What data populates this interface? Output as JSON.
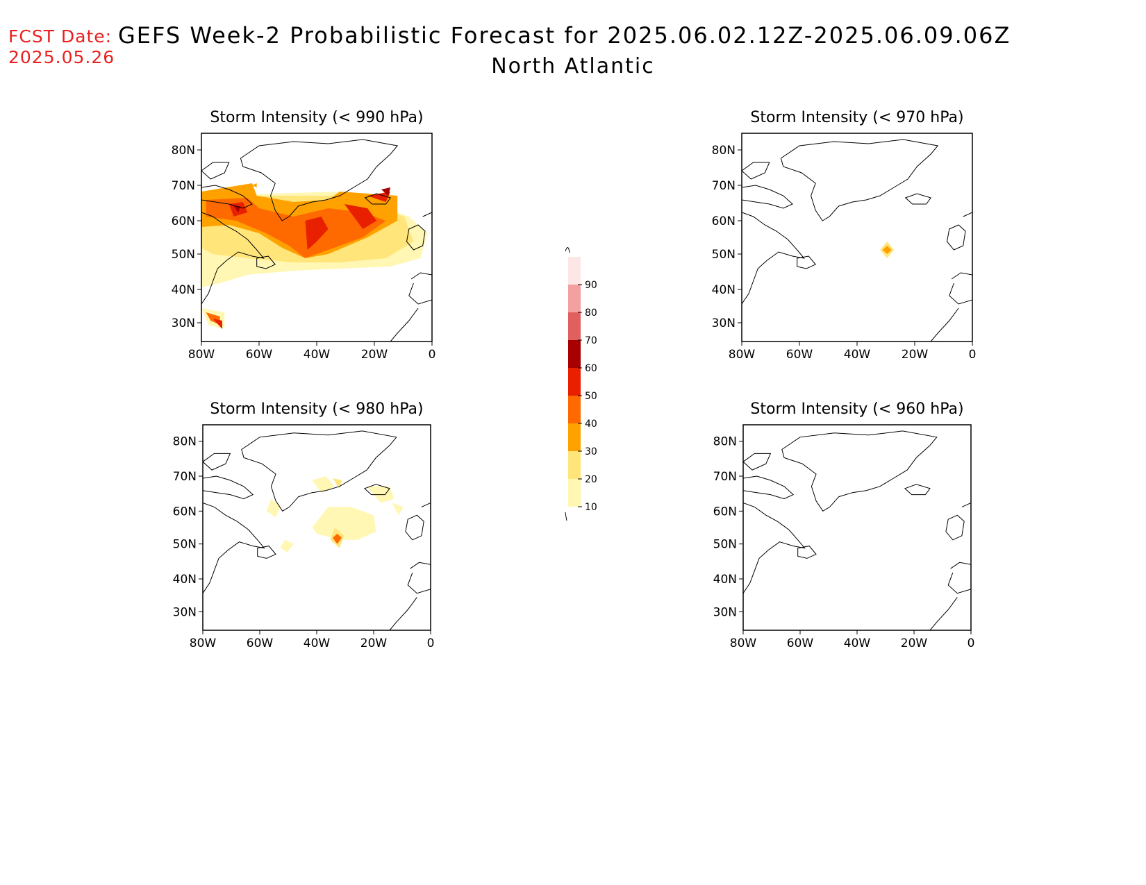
{
  "header": {
    "fcst_label": "FCST Date:",
    "fcst_date": "2025.05.26",
    "title": "GEFS Week-2 Probabilistic Forecast for 2025.06.02.12Z-2025.06.09.06Z",
    "subtitle": "North Atlantic"
  },
  "axes": {
    "lat_labels": [
      "80N",
      "70N",
      "60N",
      "50N",
      "40N",
      "30N"
    ],
    "lon_labels": [
      "80W",
      "60W",
      "40W",
      "20W",
      "0"
    ]
  },
  "panels": [
    {
      "id": "p990",
      "title": "Storm Intensity (< 990 hPa)",
      "threshold_hpa": 990
    },
    {
      "id": "p970",
      "title": "Storm Intensity (< 970 hPa)",
      "threshold_hpa": 970
    },
    {
      "id": "p980",
      "title": "Storm Intensity (< 980 hPa)",
      "threshold_hpa": 980
    },
    {
      "id": "p960",
      "title": "Storm Intensity (< 960 hPa)",
      "threshold_hpa": 960
    }
  ],
  "colorbar": {
    "levels": [
      "10",
      "20",
      "30",
      "40",
      "50",
      "60",
      "70",
      "80",
      "90"
    ],
    "colors": [
      "#fff7b3",
      "#ffe57a",
      "#ffa200",
      "#ff6a00",
      "#e82000",
      "#a80000",
      "#e06060",
      "#f2a0a0",
      "#fde6e6"
    ]
  }
}
